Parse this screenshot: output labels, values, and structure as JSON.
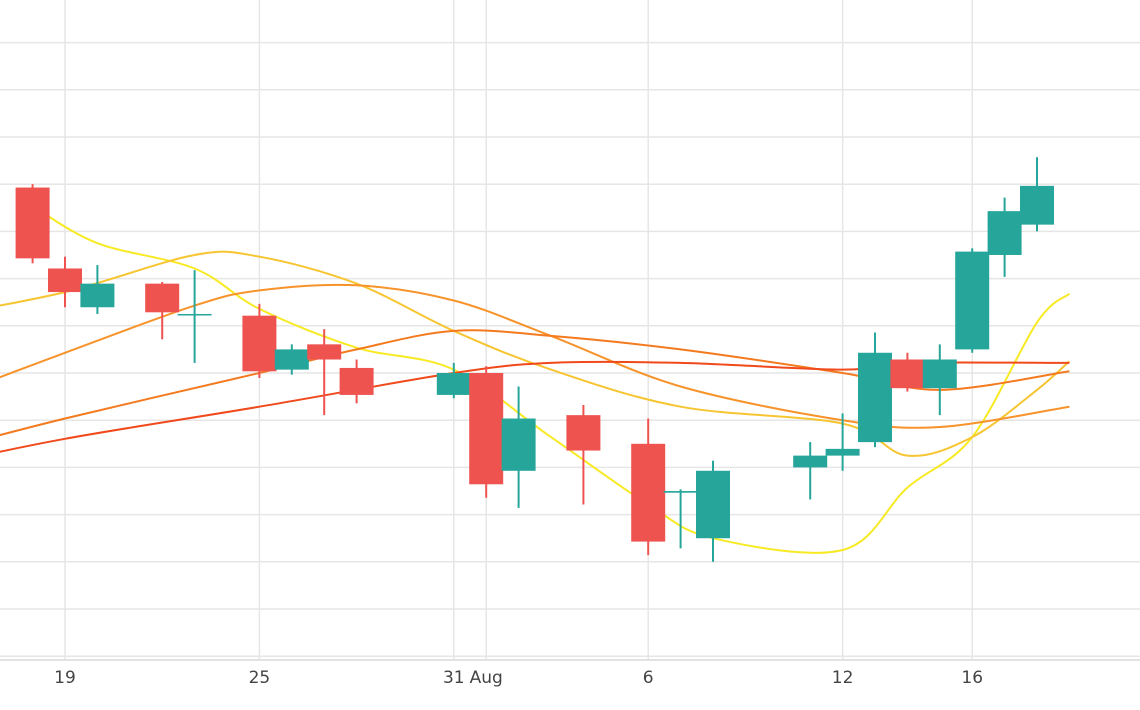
{
  "chart_data": {
    "type": "candlestick",
    "grid": true,
    "x_tick_labels": [
      {
        "date": "2024-07-19",
        "label": "19"
      },
      {
        "date": "2024-07-25",
        "label": "25"
      },
      {
        "date": "2024-07-31",
        "label": "31"
      },
      {
        "date": "2024-08-01",
        "label": "Aug"
      },
      {
        "date": "2024-08-06",
        "label": "6"
      },
      {
        "date": "2024-08-12",
        "label": "12"
      },
      {
        "date": "2024-08-16",
        "label": "16"
      }
    ],
    "candles": [
      {
        "date": "2024-07-18",
        "open": 96.8,
        "high": 97.0,
        "low": 92.3,
        "close": 92.6
      },
      {
        "date": "2024-07-19",
        "open": 92.0,
        "high": 92.7,
        "low": 89.7,
        "close": 90.6
      },
      {
        "date": "2024-07-20",
        "open": 89.7,
        "high": 92.2,
        "low": 89.3,
        "close": 91.1
      },
      {
        "date": "2024-07-22",
        "open": 91.1,
        "high": 91.2,
        "low": 87.8,
        "close": 89.4
      },
      {
        "date": "2024-07-23",
        "open": 89.3,
        "high": 91.9,
        "low": 86.4,
        "close": 89.3
      },
      {
        "date": "2024-07-25",
        "open": 89.2,
        "high": 89.9,
        "low": 85.5,
        "close": 85.9
      },
      {
        "date": "2024-07-26",
        "open": 86.0,
        "high": 87.5,
        "low": 85.7,
        "close": 87.2
      },
      {
        "date": "2024-07-27",
        "open": 87.5,
        "high": 88.4,
        "low": 83.3,
        "close": 86.6
      },
      {
        "date": "2024-07-28",
        "open": 86.1,
        "high": 86.6,
        "low": 84.0,
        "close": 84.5
      },
      {
        "date": "2024-07-31",
        "open": 84.5,
        "high": 86.4,
        "low": 84.3,
        "close": 85.8
      },
      {
        "date": "2024-08-01",
        "open": 85.8,
        "high": 86.2,
        "low": 78.4,
        "close": 79.2
      },
      {
        "date": "2024-08-02",
        "open": 80.0,
        "high": 85.0,
        "low": 77.8,
        "close": 83.1
      },
      {
        "date": "2024-08-04",
        "open": 83.3,
        "high": 83.9,
        "low": 78.0,
        "close": 81.2
      },
      {
        "date": "2024-08-06",
        "open": 81.6,
        "high": 83.1,
        "low": 75.0,
        "close": 75.8
      },
      {
        "date": "2024-08-07",
        "open": 78.7,
        "high": 78.9,
        "low": 75.4,
        "close": 78.8
      },
      {
        "date": "2024-08-08",
        "open": 76.0,
        "high": 80.6,
        "low": 74.6,
        "close": 80.0
      },
      {
        "date": "2024-08-11",
        "open": 80.2,
        "high": 81.7,
        "low": 78.3,
        "close": 80.9
      },
      {
        "date": "2024-08-12",
        "open": 80.9,
        "high": 83.4,
        "low": 80.0,
        "close": 81.3
      },
      {
        "date": "2024-08-13",
        "open": 81.7,
        "high": 88.2,
        "low": 81.4,
        "close": 87.0
      },
      {
        "date": "2024-08-14",
        "open": 86.6,
        "high": 87.0,
        "low": 84.7,
        "close": 84.9
      },
      {
        "date": "2024-08-15",
        "open": 84.9,
        "high": 87.5,
        "low": 83.3,
        "close": 86.6
      },
      {
        "date": "2024-08-16",
        "open": 87.2,
        "high": 93.2,
        "low": 87.0,
        "close": 93.0
      },
      {
        "date": "2024-08-17",
        "open": 92.8,
        "high": 96.2,
        "low": 91.5,
        "close": 95.4
      },
      {
        "date": "2024-08-18",
        "open": 94.6,
        "high": 98.6,
        "low": 94.2,
        "close": 96.9
      }
    ],
    "series": [
      {
        "color": "#f7ea23",
        "values": [
          {
            "date": "2024-07-18",
            "y": 95.7
          },
          {
            "date": "2024-07-20",
            "y": 93.5
          },
          {
            "date": "2024-07-23",
            "y": 92.0
          },
          {
            "date": "2024-07-25",
            "y": 89.6
          },
          {
            "date": "2024-07-28",
            "y": 87.3
          },
          {
            "date": "2024-07-31",
            "y": 86.0
          },
          {
            "date": "2024-08-03",
            "y": 82.0
          },
          {
            "date": "2024-08-06",
            "y": 78.0
          },
          {
            "date": "2024-08-08",
            "y": 76.0
          },
          {
            "date": "2024-08-12",
            "y": 75.3
          },
          {
            "date": "2024-08-14",
            "y": 79.0
          },
          {
            "date": "2024-08-16",
            "y": 82.0
          },
          {
            "date": "2024-08-18",
            "y": 88.8
          },
          {
            "date": "2024-08-19",
            "y": 90.5
          }
        ]
      },
      {
        "color": "#f7c531",
        "values": [
          {
            "date": "2024-07-15",
            "y": 89.1
          },
          {
            "date": "2024-07-19",
            "y": 90.6
          },
          {
            "date": "2024-07-23",
            "y": 92.8
          },
          {
            "date": "2024-07-25",
            "y": 92.7
          },
          {
            "date": "2024-07-28",
            "y": 91.1
          },
          {
            "date": "2024-07-31",
            "y": 88.3
          },
          {
            "date": "2024-08-03",
            "y": 86.0
          },
          {
            "date": "2024-08-07",
            "y": 83.8
          },
          {
            "date": "2024-08-12",
            "y": 82.8
          },
          {
            "date": "2024-08-14",
            "y": 80.9
          },
          {
            "date": "2024-08-16",
            "y": 82.0
          },
          {
            "date": "2024-08-18",
            "y": 84.8
          },
          {
            "date": "2024-08-19",
            "y": 86.5
          }
        ]
      },
      {
        "color": "#f7932b",
        "values": [
          {
            "date": "2024-07-15",
            "y": 84.1
          },
          {
            "date": "2024-07-19",
            "y": 87.0
          },
          {
            "date": "2024-07-23",
            "y": 89.8
          },
          {
            "date": "2024-07-25",
            "y": 90.7
          },
          {
            "date": "2024-07-28",
            "y": 91.0
          },
          {
            "date": "2024-07-31",
            "y": 90.1
          },
          {
            "date": "2024-08-03",
            "y": 88.0
          },
          {
            "date": "2024-08-07",
            "y": 85.0
          },
          {
            "date": "2024-08-12",
            "y": 83.0
          },
          {
            "date": "2024-08-15",
            "y": 82.6
          },
          {
            "date": "2024-08-19",
            "y": 83.8
          }
        ]
      },
      {
        "color": "#f47a1f",
        "values": [
          {
            "date": "2024-07-15",
            "y": 81.1
          },
          {
            "date": "2024-07-19",
            "y": 83.1
          },
          {
            "date": "2024-07-25",
            "y": 85.8
          },
          {
            "date": "2024-07-28",
            "y": 87.2
          },
          {
            "date": "2024-07-31",
            "y": 88.3
          },
          {
            "date": "2024-08-03",
            "y": 88.0
          },
          {
            "date": "2024-08-07",
            "y": 87.2
          },
          {
            "date": "2024-08-12",
            "y": 85.8
          },
          {
            "date": "2024-08-15",
            "y": 84.8
          },
          {
            "date": "2024-08-19",
            "y": 85.9
          }
        ]
      },
      {
        "color": "#f04a1c",
        "values": [
          {
            "date": "2024-07-15",
            "y": 80.3
          },
          {
            "date": "2024-07-19",
            "y": 81.9
          },
          {
            "date": "2024-07-25",
            "y": 83.8
          },
          {
            "date": "2024-07-31",
            "y": 85.8
          },
          {
            "date": "2024-08-03",
            "y": 86.4
          },
          {
            "date": "2024-08-07",
            "y": 86.4
          },
          {
            "date": "2024-08-12",
            "y": 86.0
          },
          {
            "date": "2024-08-14",
            "y": 86.4
          },
          {
            "date": "2024-08-19",
            "y": 86.4
          }
        ]
      }
    ],
    "colors": {
      "up": "#26a69a",
      "down": "#ef5350",
      "grid": "#e6e6e6",
      "axis": "#d9d9d9",
      "background": "#ffffff"
    }
  }
}
